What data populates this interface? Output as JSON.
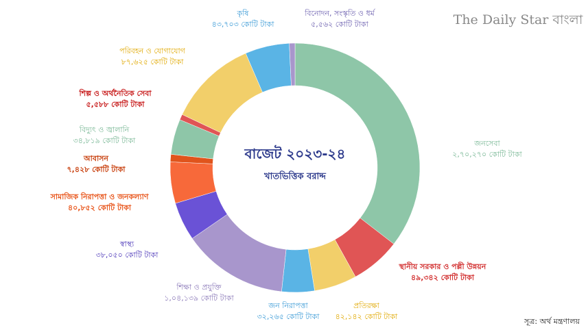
{
  "chart_data": {
    "type": "donut",
    "title": "বাজেট ২০২৩-২৪",
    "subtitle": "খাতভিত্তিক বরাদ্দ",
    "logo": "The Daily Star বাংলা",
    "source": "সূত্র: অর্থ মন্ত্রণালয়",
    "categories": [
      "জনসেবা",
      "স্থানীয় সরকার ও পল্লী উন্নয়ন",
      "প্রতিরক্ষা",
      "জন নিরাপত্তা",
      "শিক্ষা ও প্রযুক্তি",
      "স্বাস্থ্য",
      "সামাজিক নিরাপত্তা ও জনকল্যাণ",
      "আবাসন",
      "বিদ্যুৎ ও জ্বালানি",
      "শিল্প ও অর্থনৈতিক সেবা",
      "পরিবহন ও যোগাযোগ",
      "কৃষি",
      "বিনোদন, সংস্কৃতি ও ধর্ম"
    ],
    "values": [
      270270,
      49342,
      42142,
      32265,
      104139,
      38050,
      40852,
      7428,
      34819,
      5588,
      87625,
      43703,
      5562
    ],
    "value_labels": [
      "২,৭০,২৭০ কোটি টাকা",
      "৪৯,৩৪২ কোটি টাকা",
      "৪২,১৪২ কোটি টাকা",
      "৩২,২৬৫ কোটি টাকা",
      "১,০৪,১৩৯ কোটি টাকা",
      "৩৮,০৫০ কোটি টাকা",
      "৪০,৮৫২ কোটি টাকা",
      "৭,৪২৮ কোটি টাকা",
      "৩৪,৮১৯ কোটি টাকা",
      "৫,৫৮৮ কোটি টাকা",
      "৮৭,৬২৫ কোটি টাকা",
      "৪৩,৭০৩ কোটি টাকা",
      "৫,৫৬২ কোটি টাকা"
    ],
    "colors": [
      "#8ec6a8",
      "#e05555",
      "#f2cf6a",
      "#5ab4e5",
      "#a896cc",
      "#6a52d6",
      "#f7693a",
      "#e0541c",
      "#8ec6a8",
      "#e05555",
      "#f2cf6a",
      "#5ab4e5",
      "#a896cc"
    ]
  }
}
